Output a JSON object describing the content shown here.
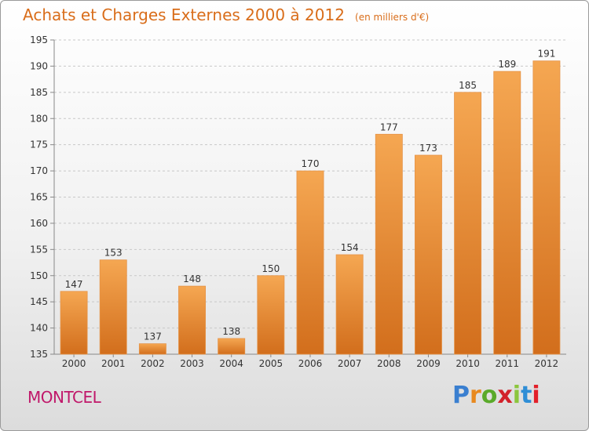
{
  "header": {
    "title": "Achats et Charges Externes 2000 à 2012",
    "unit": "(en milliers d'€)"
  },
  "footer": {
    "commune": "MONTCEL",
    "logo_text": "Proxiti"
  },
  "colors": {
    "title": "#d96d1a",
    "bar_top": "#f5a752",
    "bar_bottom": "#d26e1c",
    "commune": "#c0186a",
    "logo_letters": [
      "#3a7fd0",
      "#e8891f",
      "#5aaa2a",
      "#d2212a",
      "#8cc63e",
      "#2f8ed6",
      "#e2202a"
    ]
  },
  "chart_data": {
    "type": "bar",
    "categories": [
      "2000",
      "2001",
      "2002",
      "2003",
      "2004",
      "2005",
      "2006",
      "2007",
      "2008",
      "2009",
      "2010",
      "2011",
      "2012"
    ],
    "values": [
      147,
      153,
      137,
      148,
      138,
      150,
      170,
      154,
      177,
      173,
      185,
      189,
      191
    ],
    "ylim": [
      135,
      195
    ],
    "yticks": [
      135,
      140,
      145,
      150,
      155,
      160,
      165,
      170,
      175,
      180,
      185,
      190,
      195
    ],
    "xlabel": "",
    "ylabel": "",
    "grid": "horizontal dashed"
  }
}
